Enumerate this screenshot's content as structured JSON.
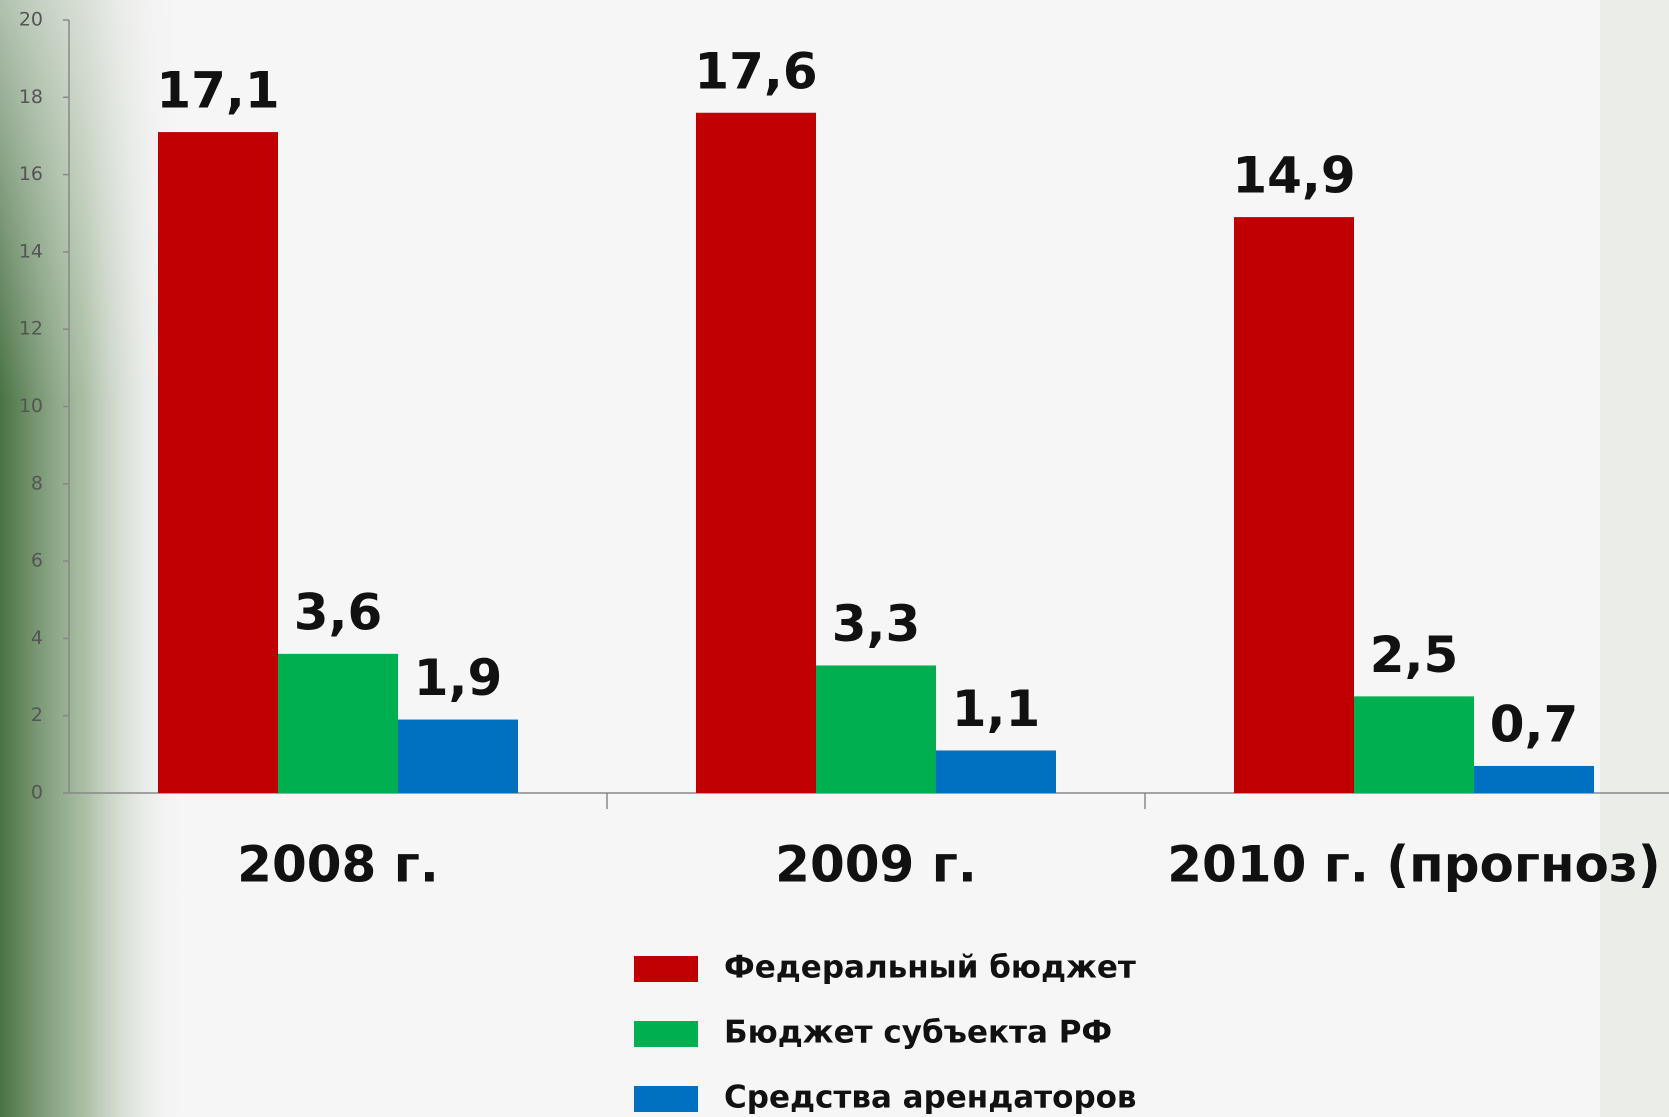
{
  "chart_data": {
    "type": "bar",
    "categories": [
      "2008 г.",
      "2009 г.",
      "2010 г. (прогноз)"
    ],
    "series": [
      {
        "name": "Федеральный бюджет",
        "color": "#c00000",
        "values": [
          17.1,
          17.6,
          14.9
        ],
        "value_labels": [
          "17,1",
          "17,6",
          "14,9"
        ]
      },
      {
        "name": "Бюджет субъекта РФ",
        "color": "#00b050",
        "values": [
          3.6,
          3.3,
          2.5
        ],
        "value_labels": [
          "3,6",
          "3,3",
          "2,5"
        ]
      },
      {
        "name": "Средства арендаторов",
        "color": "#0070c0",
        "values": [
          1.9,
          1.1,
          0.7
        ],
        "value_labels": [
          "1,9",
          "1,1",
          "0,7"
        ]
      }
    ],
    "ylim": [
      0,
      20
    ],
    "yticks": [
      0,
      2,
      4,
      6,
      8,
      10,
      12,
      14,
      16,
      18,
      20
    ],
    "grid": false,
    "legend": "bottom"
  }
}
